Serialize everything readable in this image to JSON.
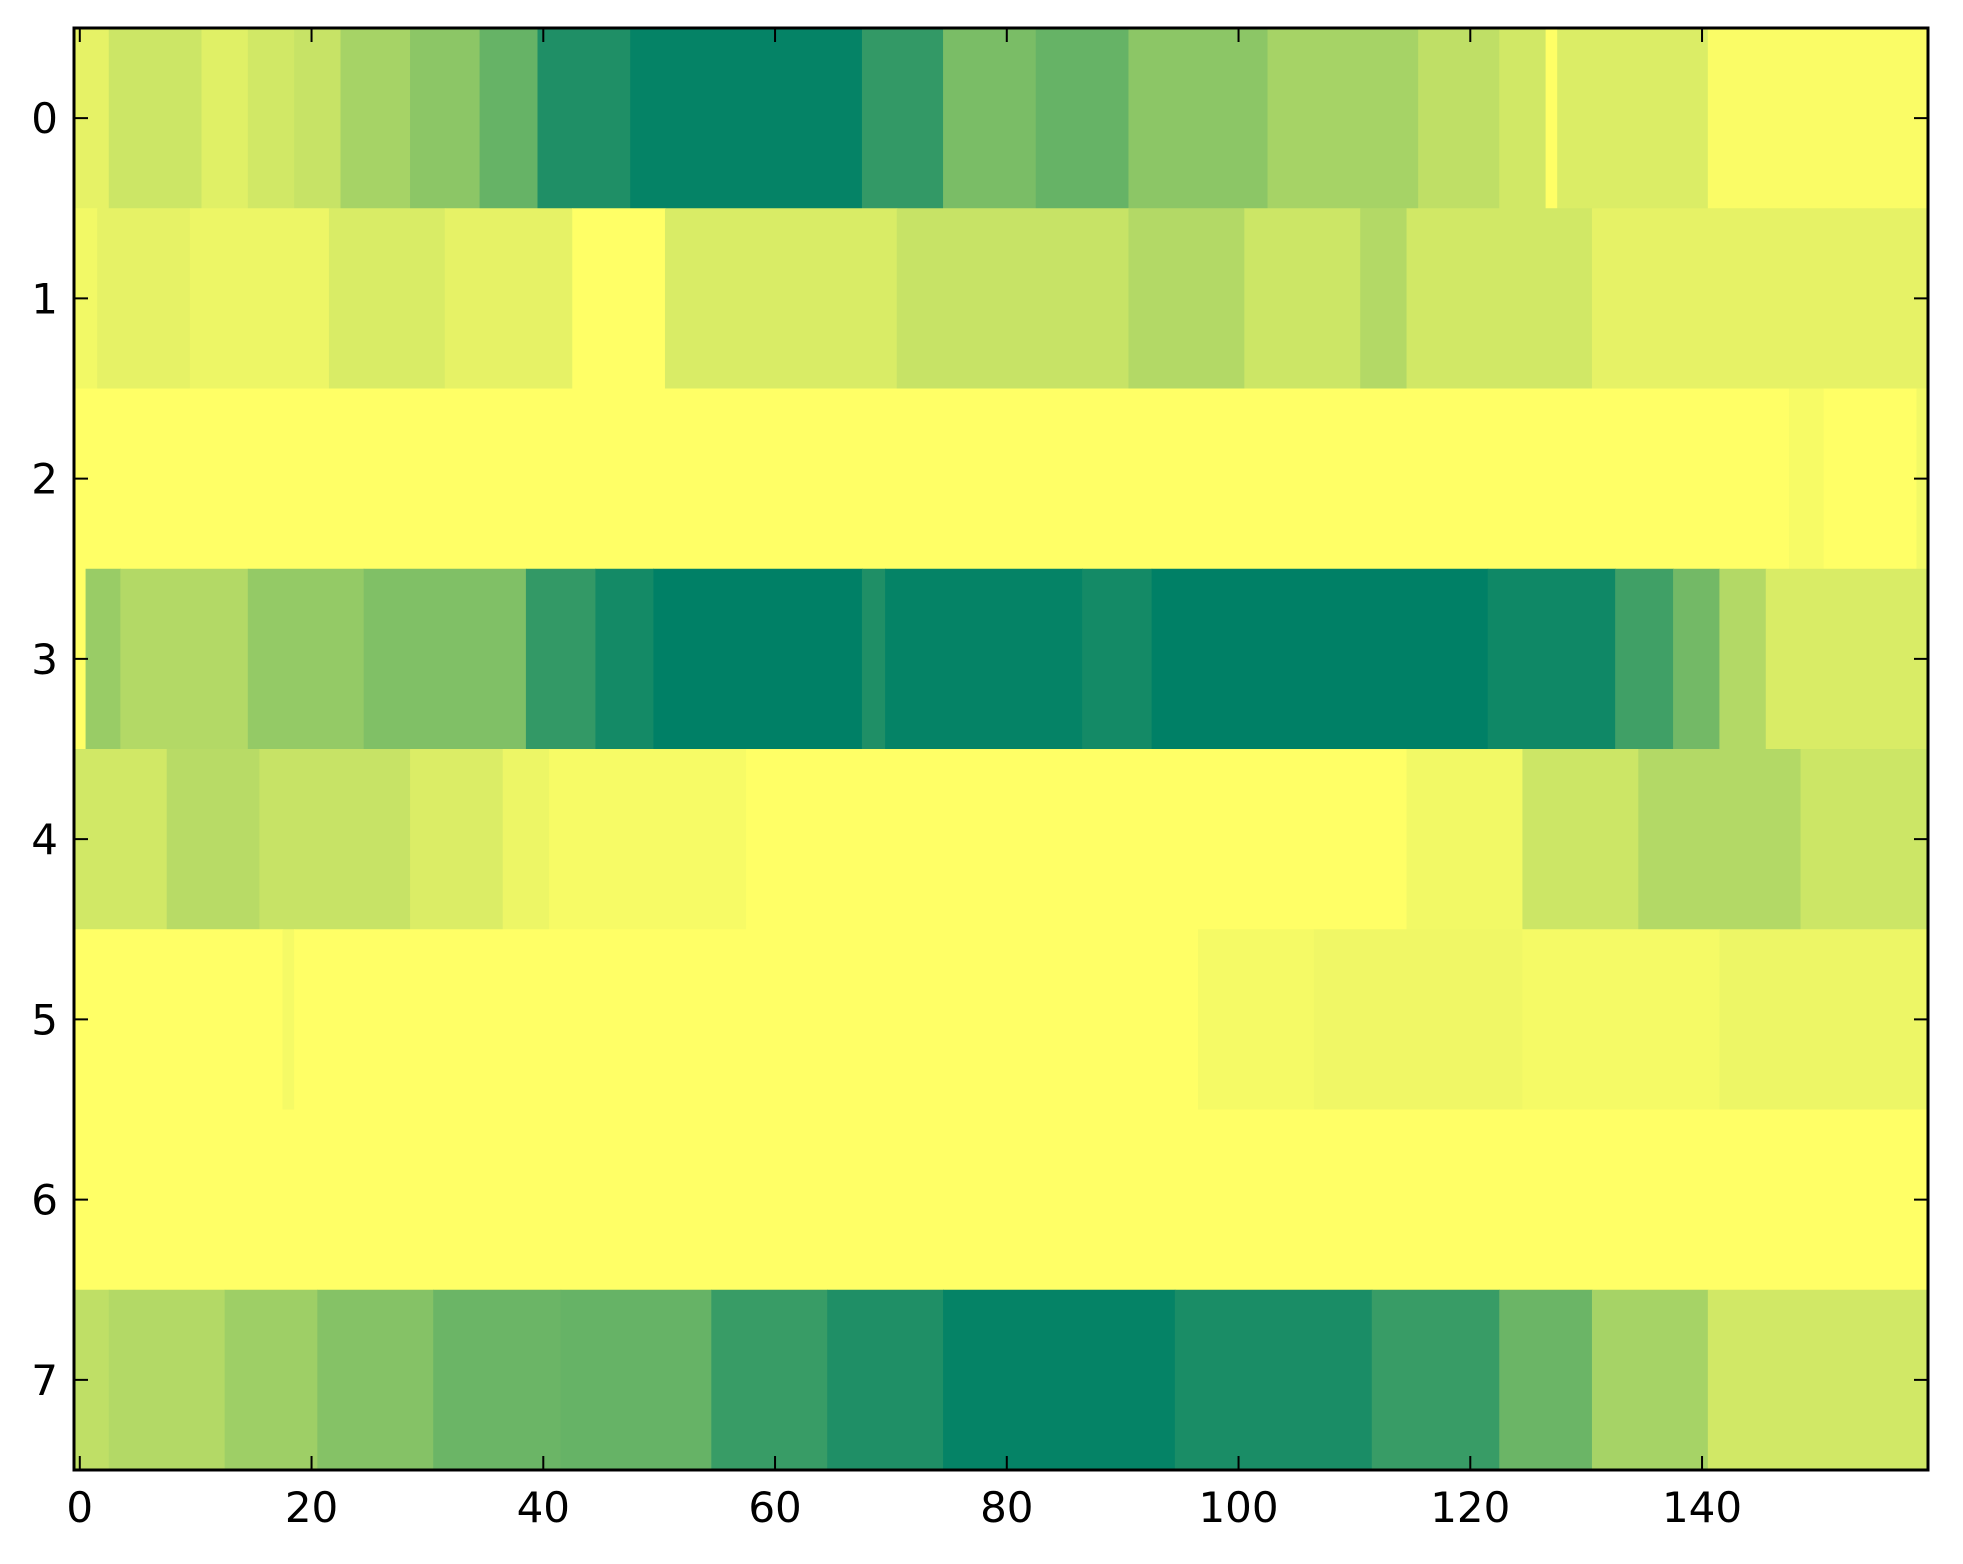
{
  "chart_data": {
    "type": "heatmap",
    "title": "",
    "xlabel": "",
    "ylabel": "",
    "colormap": "summer",
    "colormap_colors": [
      "#008066",
      "#ffff66"
    ],
    "n_columns": 160,
    "n_rows": 8,
    "xlim": [
      -0.5,
      159.5
    ],
    "ylim": [
      -0.5,
      7.5
    ],
    "y_inverted": true,
    "x_ticks": [
      0,
      20,
      40,
      60,
      80,
      100,
      120,
      140
    ],
    "x_tick_labels": [
      "0",
      "20",
      "40",
      "60",
      "80",
      "100",
      "120",
      "140"
    ],
    "y_ticks": [
      0,
      1,
      2,
      3,
      4,
      5,
      6,
      7
    ],
    "y_tick_labels": [
      "0",
      "1",
      "2",
      "3",
      "4",
      "5",
      "6",
      "7"
    ],
    "value_range": [
      0,
      1
    ],
    "rows": [
      {
        "row": 0,
        "segments": [
          {
            "from": 0,
            "to": 2,
            "value": 0.9
          },
          {
            "from": 3,
            "to": 10,
            "value": 0.8
          },
          {
            "from": 11,
            "to": 14,
            "value": 0.88
          },
          {
            "from": 15,
            "to": 18,
            "value": 0.82
          },
          {
            "from": 19,
            "to": 22,
            "value": 0.78
          },
          {
            "from": 23,
            "to": 28,
            "value": 0.65
          },
          {
            "from": 29,
            "to": 34,
            "value": 0.55
          },
          {
            "from": 35,
            "to": 39,
            "value": 0.4
          },
          {
            "from": 40,
            "to": 47,
            "value": 0.12
          },
          {
            "from": 48,
            "to": 67,
            "value": 0.02
          },
          {
            "from": 68,
            "to": 74,
            "value": 0.2
          },
          {
            "from": 75,
            "to": 82,
            "value": 0.48
          },
          {
            "from": 83,
            "to": 90,
            "value": 0.4
          },
          {
            "from": 91,
            "to": 102,
            "value": 0.55
          },
          {
            "from": 103,
            "to": 115,
            "value": 0.65
          },
          {
            "from": 116,
            "to": 122,
            "value": 0.75
          },
          {
            "from": 123,
            "to": 126,
            "value": 0.82
          },
          {
            "from": 127,
            "to": 127,
            "value": 1.0
          },
          {
            "from": 128,
            "to": 140,
            "value": 0.86
          },
          {
            "from": 141,
            "to": 159,
            "value": 0.98
          }
        ]
      },
      {
        "row": 1,
        "segments": [
          {
            "from": 0,
            "to": 1,
            "value": 0.95
          },
          {
            "from": 2,
            "to": 9,
            "value": 0.9
          },
          {
            "from": 10,
            "to": 21,
            "value": 0.93
          },
          {
            "from": 22,
            "to": 31,
            "value": 0.85
          },
          {
            "from": 32,
            "to": 42,
            "value": 0.9
          },
          {
            "from": 43,
            "to": 50,
            "value": 1.0
          },
          {
            "from": 51,
            "to": 70,
            "value": 0.85
          },
          {
            "from": 71,
            "to": 90,
            "value": 0.78
          },
          {
            "from": 91,
            "to": 100,
            "value": 0.7
          },
          {
            "from": 101,
            "to": 110,
            "value": 0.8
          },
          {
            "from": 111,
            "to": 114,
            "value": 0.7
          },
          {
            "from": 115,
            "to": 130,
            "value": 0.82
          },
          {
            "from": 131,
            "to": 159,
            "value": 0.9
          }
        ]
      },
      {
        "row": 2,
        "segments": [
          {
            "from": 0,
            "to": 147,
            "value": 1.0
          },
          {
            "from": 148,
            "to": 150,
            "value": 0.97
          },
          {
            "from": 151,
            "to": 158,
            "value": 1.0
          },
          {
            "from": 159,
            "to": 159,
            "value": 0.95
          }
        ]
      },
      {
        "row": 3,
        "segments": [
          {
            "from": 0,
            "to": 0,
            "value": 1.0
          },
          {
            "from": 1,
            "to": 3,
            "value": 0.6
          },
          {
            "from": 4,
            "to": 14,
            "value": 0.7
          },
          {
            "from": 15,
            "to": 24,
            "value": 0.58
          },
          {
            "from": 25,
            "to": 38,
            "value": 0.5
          },
          {
            "from": 39,
            "to": 44,
            "value": 0.2
          },
          {
            "from": 45,
            "to": 49,
            "value": 0.08
          },
          {
            "from": 50,
            "to": 67,
            "value": 0.0
          },
          {
            "from": 68,
            "to": 69,
            "value": 0.12
          },
          {
            "from": 70,
            "to": 86,
            "value": 0.02
          },
          {
            "from": 87,
            "to": 92,
            "value": 0.08
          },
          {
            "from": 93,
            "to": 121,
            "value": 0.0
          },
          {
            "from": 122,
            "to": 132,
            "value": 0.06
          },
          {
            "from": 133,
            "to": 137,
            "value": 0.25
          },
          {
            "from": 138,
            "to": 141,
            "value": 0.45
          },
          {
            "from": 142,
            "to": 145,
            "value": 0.7
          },
          {
            "from": 146,
            "to": 159,
            "value": 0.85
          }
        ]
      },
      {
        "row": 4,
        "segments": [
          {
            "from": 0,
            "to": 7,
            "value": 0.82
          },
          {
            "from": 8,
            "to": 15,
            "value": 0.72
          },
          {
            "from": 16,
            "to": 28,
            "value": 0.78
          },
          {
            "from": 29,
            "to": 36,
            "value": 0.86
          },
          {
            "from": 37,
            "to": 40,
            "value": 0.93
          },
          {
            "from": 41,
            "to": 57,
            "value": 0.97
          },
          {
            "from": 58,
            "to": 114,
            "value": 1.0
          },
          {
            "from": 115,
            "to": 124,
            "value": 0.95
          },
          {
            "from": 125,
            "to": 134,
            "value": 0.8
          },
          {
            "from": 135,
            "to": 148,
            "value": 0.7
          },
          {
            "from": 149,
            "to": 159,
            "value": 0.8
          }
        ]
      },
      {
        "row": 5,
        "segments": [
          {
            "from": 0,
            "to": 17,
            "value": 1.0
          },
          {
            "from": 18,
            "to": 18,
            "value": 0.96
          },
          {
            "from": 19,
            "to": 96,
            "value": 1.0
          },
          {
            "from": 97,
            "to": 106,
            "value": 0.96
          },
          {
            "from": 107,
            "to": 124,
            "value": 0.94
          },
          {
            "from": 125,
            "to": 141,
            "value": 0.96
          },
          {
            "from": 142,
            "to": 159,
            "value": 0.93
          }
        ]
      },
      {
        "row": 6,
        "segments": [
          {
            "from": 0,
            "to": 159,
            "value": 1.0
          }
        ]
      },
      {
        "row": 7,
        "segments": [
          {
            "from": 0,
            "to": 2,
            "value": 0.75
          },
          {
            "from": 3,
            "to": 12,
            "value": 0.7
          },
          {
            "from": 13,
            "to": 20,
            "value": 0.62
          },
          {
            "from": 21,
            "to": 30,
            "value": 0.52
          },
          {
            "from": 31,
            "to": 41,
            "value": 0.42
          },
          {
            "from": 42,
            "to": 54,
            "value": 0.4
          },
          {
            "from": 55,
            "to": 64,
            "value": 0.22
          },
          {
            "from": 65,
            "to": 74,
            "value": 0.12
          },
          {
            "from": 75,
            "to": 94,
            "value": 0.02
          },
          {
            "from": 95,
            "to": 111,
            "value": 0.1
          },
          {
            "from": 112,
            "to": 122,
            "value": 0.22
          },
          {
            "from": 123,
            "to": 130,
            "value": 0.42
          },
          {
            "from": 131,
            "to": 140,
            "value": 0.65
          },
          {
            "from": 141,
            "to": 159,
            "value": 0.82
          }
        ]
      }
    ]
  }
}
